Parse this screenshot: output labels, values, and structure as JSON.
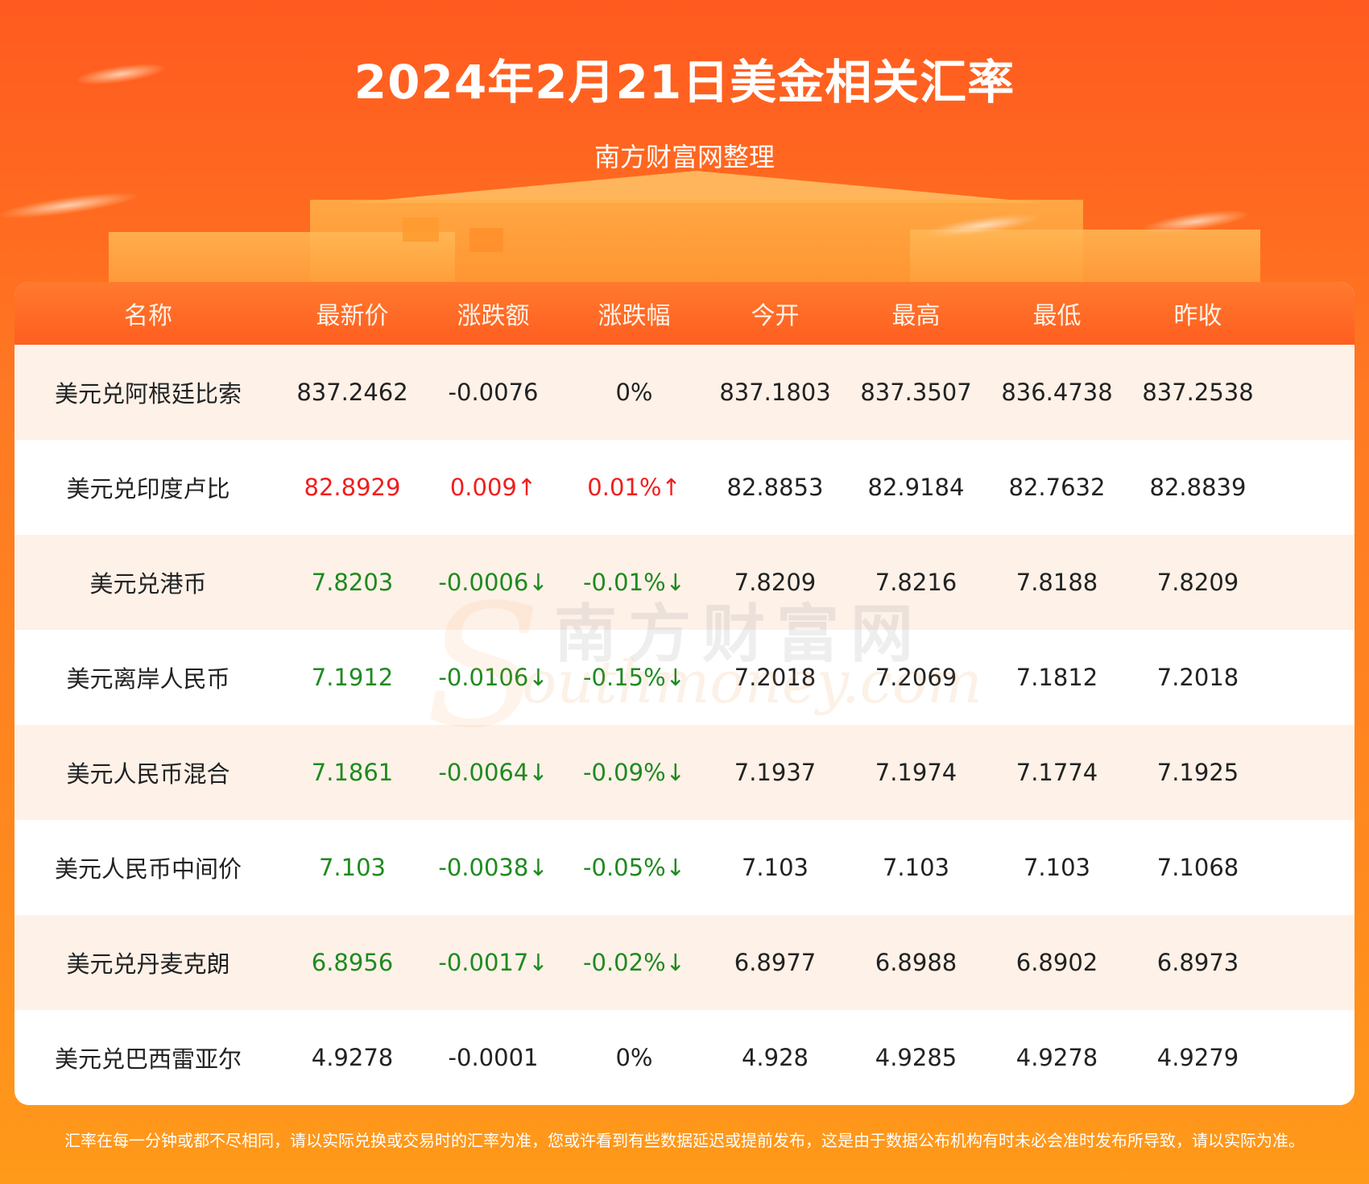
{
  "header": {
    "title": "2024年2月21日美金相关汇率",
    "subtitle": "南方财富网整理"
  },
  "table": {
    "columns": [
      "名称",
      "最新价",
      "涨跌额",
      "涨跌幅",
      "今开",
      "最高",
      "最低",
      "昨收"
    ],
    "rows": [
      {
        "name": "美元兑阿根廷比索",
        "latest": "837.2462",
        "change": "-0.0076",
        "change_pct": "0%",
        "open": "837.1803",
        "high": "837.3507",
        "low": "836.4738",
        "prev_close": "837.2538",
        "trend": "flat"
      },
      {
        "name": "美元兑印度卢比",
        "latest": "82.8929",
        "change": "0.009↑",
        "change_pct": "0.01%↑",
        "open": "82.8853",
        "high": "82.9184",
        "low": "82.7632",
        "prev_close": "82.8839",
        "trend": "up"
      },
      {
        "name": "美元兑港币",
        "latest": "7.8203",
        "change": "-0.0006↓",
        "change_pct": "-0.01%↓",
        "open": "7.8209",
        "high": "7.8216",
        "low": "7.8188",
        "prev_close": "7.8209",
        "trend": "down"
      },
      {
        "name": "美元离岸人民币",
        "latest": "7.1912",
        "change": "-0.0106↓",
        "change_pct": "-0.15%↓",
        "open": "7.2018",
        "high": "7.2069",
        "low": "7.1812",
        "prev_close": "7.2018",
        "trend": "down"
      },
      {
        "name": "美元人民币混合",
        "latest": "7.1861",
        "change": "-0.0064↓",
        "change_pct": "-0.09%↓",
        "open": "7.1937",
        "high": "7.1974",
        "low": "7.1774",
        "prev_close": "7.1925",
        "trend": "down"
      },
      {
        "name": "美元人民币中间价",
        "latest": "7.103",
        "change": "-0.0038↓",
        "change_pct": "-0.05%↓",
        "open": "7.103",
        "high": "7.103",
        "low": "7.103",
        "prev_close": "7.1068",
        "trend": "down"
      },
      {
        "name": "美元兑丹麦克朗",
        "latest": "6.8956",
        "change": "-0.0017↓",
        "change_pct": "-0.02%↓",
        "open": "6.8977",
        "high": "6.8988",
        "low": "6.8902",
        "prev_close": "6.8973",
        "trend": "down"
      },
      {
        "name": "美元兑巴西雷亚尔",
        "latest": "4.9278",
        "change": "-0.0001",
        "change_pct": "0%",
        "open": "4.928",
        "high": "4.9285",
        "low": "4.9278",
        "prev_close": "4.9279",
        "trend": "flat"
      }
    ]
  },
  "watermark": {
    "cn": "南方财富网",
    "en": "outhmoney.com",
    "s_letter": "S"
  },
  "footer": {
    "disclaimer": "汇率在每一分钟或都不尽相同，请以实际兑换或交易时的汇率为准，您或许看到有些数据延迟或提前发布，这是由于数据公布机构有时未必会准时发布所导致，请以实际为准。"
  },
  "colors": {
    "up": "#f01e1e",
    "down": "#1f8a1f",
    "flat": "#222222",
    "header_bg": "#ff5e20",
    "row_alt_bg": "#fdf1e8"
  }
}
